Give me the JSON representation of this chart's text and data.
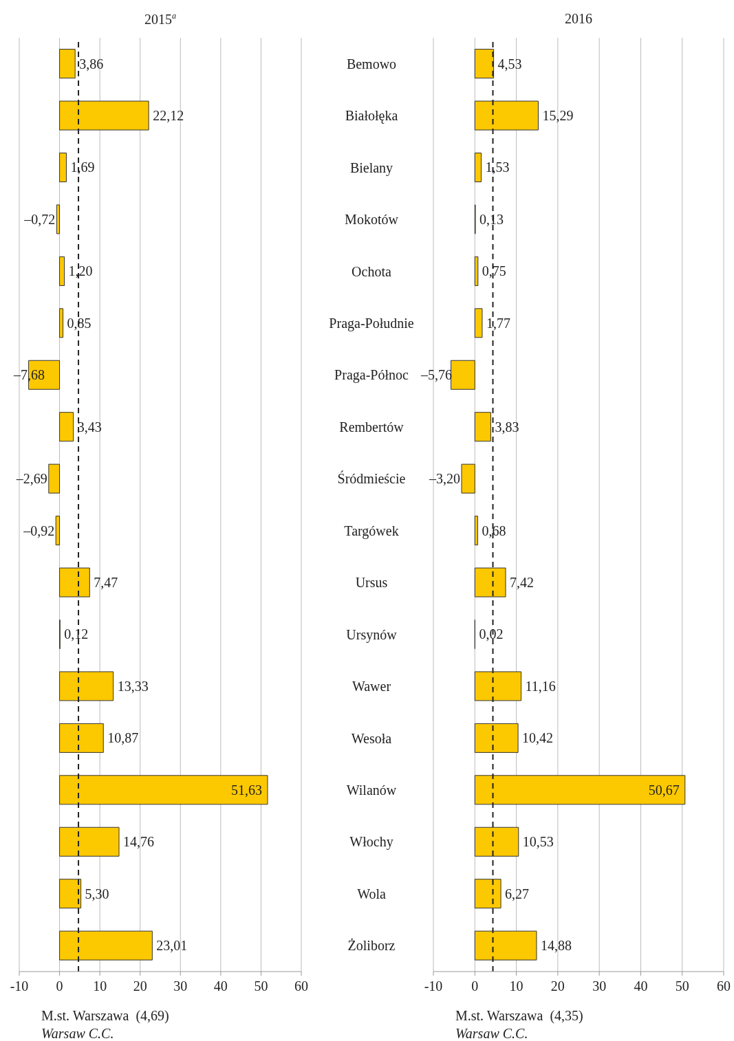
{
  "chart_data": [
    {
      "type": "bar",
      "orientation": "horizontal",
      "title": "2015$^{a}$",
      "categories": [
        "Bemowo",
        "Białołęka",
        "Bielany",
        "Mokotów",
        "Ochota",
        "Praga-Południe",
        "Praga-Północ",
        "Rembertów",
        "Śródmieście",
        "Targówek",
        "Ursus",
        "Ursynów",
        "Wawer",
        "Wesoła",
        "Wilanów",
        "Włochy",
        "Wola",
        "Żoliborz"
      ],
      "values": [
        3.86,
        22.12,
        1.69,
        -0.72,
        1.2,
        0.85,
        -7.68,
        3.43,
        -2.69,
        -0.92,
        7.47,
        0.12,
        13.33,
        10.87,
        51.63,
        14.76,
        5.3,
        23.01
      ],
      "value_labels": [
        "3,86",
        "22,12",
        "1,69",
        "–0,72",
        "1,20",
        "0,85",
        "–7,68",
        "3,43",
        "–2,69",
        "–0,92",
        "7,47",
        "0,12",
        "13,33",
        "10,87",
        "51,63",
        "14,76",
        "5,30",
        "23,01"
      ],
      "color": "#fcc800",
      "xlim": [
        -10,
        60
      ],
      "xticks": [
        -10,
        0,
        10,
        20,
        30,
        40,
        50,
        60
      ],
      "grid": "x",
      "ref_lines": [
        {
          "axis": "x",
          "value": 4.69,
          "label": "M.st. Warszawa  (4,69)",
          "line_style": "dashed",
          "color": "#222222"
        }
      ],
      "annotations": [
        "Warsaw C.C."
      ]
    },
    {
      "type": "bar",
      "orientation": "horizontal",
      "title": "2016",
      "tick_labels": "x",
      "values": [
        4.53,
        15.29,
        1.53,
        0.13,
        0.75,
        1.77,
        -5.76,
        3.83,
        -3.2,
        0.68,
        7.42,
        0.02,
        11.16,
        10.42,
        50.67,
        10.53,
        6.27,
        14.88
      ],
      "value_labels": [
        "4,53",
        "15,29",
        "1,53",
        "0,13",
        "0,75",
        "1,77",
        "–5,76",
        "3,83",
        "–3,20",
        "0,68",
        "7,42",
        "0,02",
        "11,16",
        "10,42",
        "50,67",
        "10,53",
        "6,27",
        "14,88"
      ],
      "color": "#fcc800",
      "xlim": [
        -10,
        60
      ],
      "xticks": [
        -10,
        0,
        10,
        20,
        30,
        40,
        50,
        60
      ],
      "grid": "x",
      "ref_lines": [
        {
          "axis": "x",
          "value": 4.35,
          "label": "M.st. Warszawa  (4,35)",
          "line_style": "dashed",
          "color": "#222222"
        }
      ],
      "annotations": [
        "Warsaw C.C."
      ]
    }
  ]
}
